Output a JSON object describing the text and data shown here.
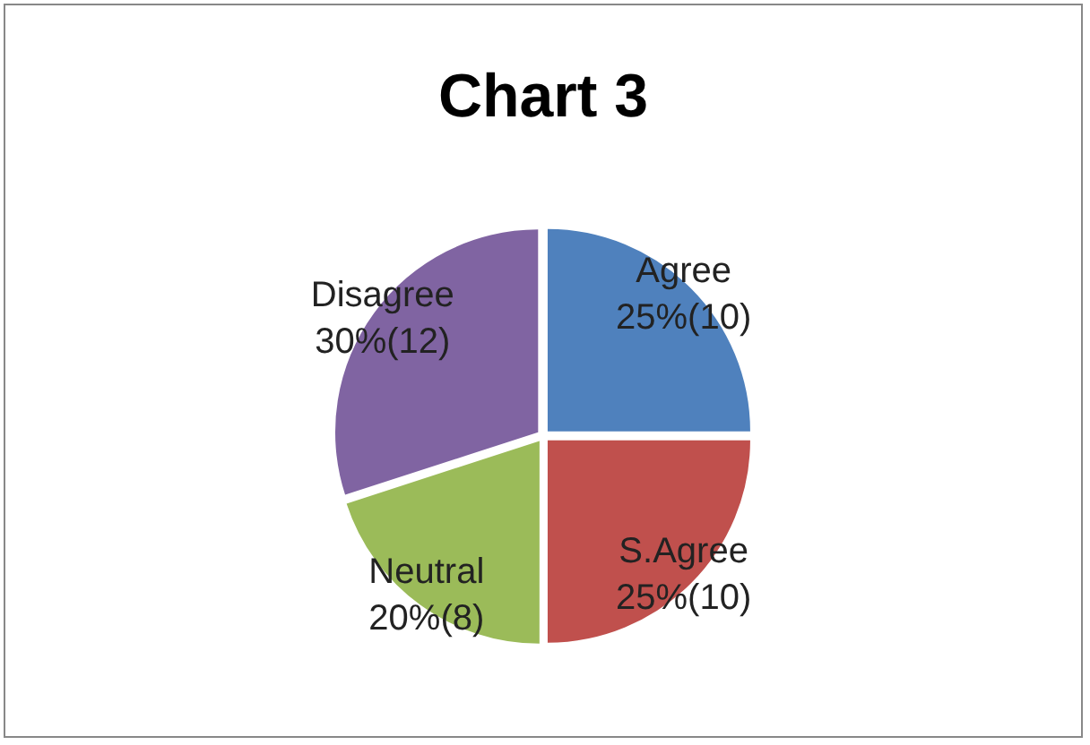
{
  "chart_data": {
    "type": "pie",
    "title": "Chart 3",
    "categories": [
      "Agree",
      "S.Agree",
      "Neutral",
      "Disagree"
    ],
    "values": [
      10,
      10,
      8,
      12
    ],
    "value_labels": [
      "25%(10)",
      "25%(10)",
      "20%(8)",
      "30%(12)"
    ],
    "colors": [
      "#4f81bd",
      "#c0504d",
      "#9bbb59",
      "#8064a2"
    ],
    "legend": false
  }
}
